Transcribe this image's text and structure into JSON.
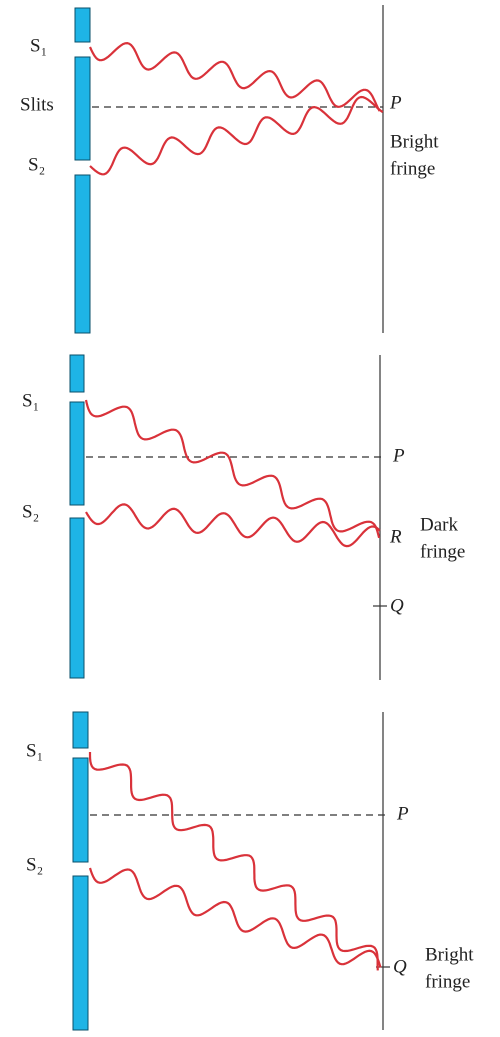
{
  "panels": [
    {
      "s1": "S₁",
      "slits": "Slits",
      "s2": "S₂",
      "p": "P",
      "fringe": [
        "Bright",
        "fringe"
      ]
    },
    {
      "s1": "S₁",
      "s2": "S₂",
      "p": "P",
      "r": "R",
      "fringe": [
        "Dark",
        "fringe"
      ],
      "q": "Q"
    },
    {
      "s1": "S₁",
      "s2": "S₂",
      "p": "P",
      "q": "Q",
      "fringe": [
        "Bright",
        "fringe"
      ]
    }
  ]
}
